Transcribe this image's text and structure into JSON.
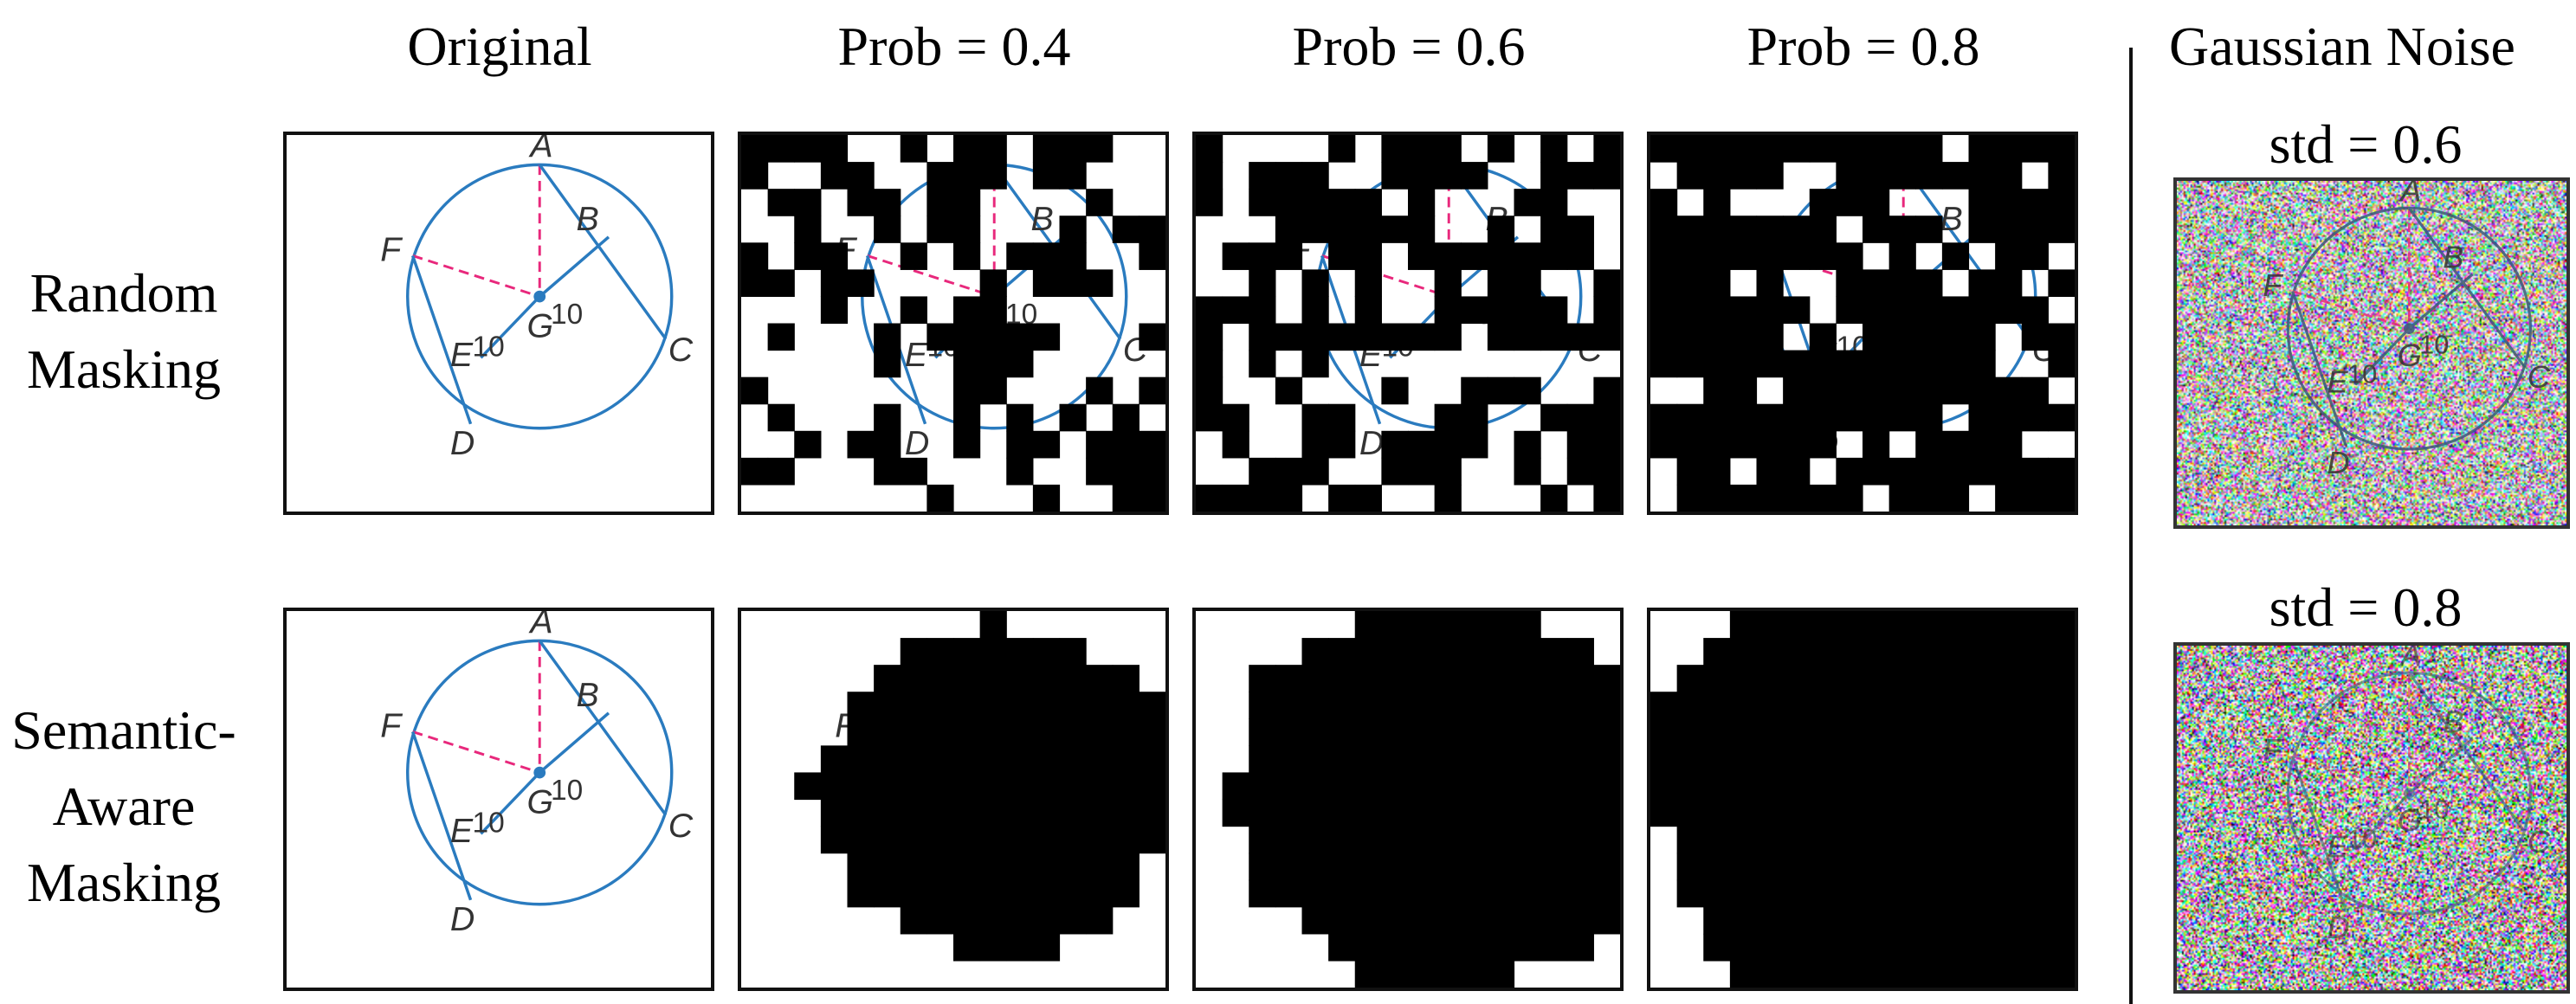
{
  "columns": {
    "original": "Original",
    "prob_04": "Prob = 0.4",
    "prob_06": "Prob = 0.6",
    "prob_08": "Prob = 0.8",
    "gaussian": "Gaussian Noise"
  },
  "rows": {
    "random": [
      "Random",
      "Masking"
    ],
    "semantic": [
      "Semantic-",
      "Aware",
      "Masking"
    ]
  },
  "noise_levels": {
    "std_06": "std = 0.6",
    "std_08": "std = 0.8"
  },
  "figure": {
    "points": [
      "A",
      "B",
      "C",
      "D",
      "E",
      "F",
      "G"
    ],
    "lengths": [
      "10",
      "10"
    ]
  },
  "masking": {
    "probabilities": [
      0.4,
      0.6,
      0.8
    ],
    "noise_std": [
      0.6,
      0.8
    ]
  },
  "colors": {
    "circle": "#2a7bbf",
    "dashed": "#e8287c",
    "mask": "#000000",
    "frame": "#111111"
  }
}
